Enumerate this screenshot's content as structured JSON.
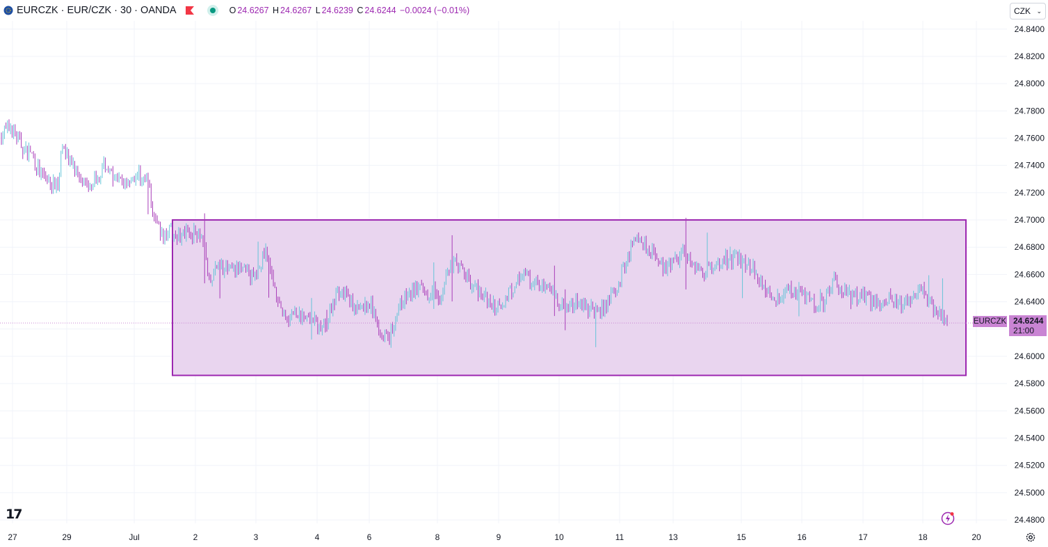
{
  "header": {
    "symbol": "EURCZK · EUR/CZK · 30 · OANDA",
    "open_label": "O",
    "open": "24.6267",
    "high_label": "H",
    "high": "24.6267",
    "low_label": "L",
    "low": "24.6239",
    "close_label": "C",
    "close": "24.6244",
    "change": "−0.0024 (−0.01%)"
  },
  "currency_selector": {
    "value": "CZK"
  },
  "price_tag": {
    "price": "24.6244",
    "countdown": "21:00",
    "symbol": "EURCZK"
  },
  "logo": {
    "text": "17"
  },
  "colors": {
    "up": "#64c4d8",
    "down": "#a83cb8",
    "box_fill": "#e9d5ef",
    "box_stroke": "#9c27b0"
  },
  "chart_data": {
    "type": "candlestick",
    "symbol": "EURCZK",
    "timeframe": "30",
    "y_ticks": [
      "24.8400",
      "24.8200",
      "24.8000",
      "24.7800",
      "24.7600",
      "24.7400",
      "24.7200",
      "24.7000",
      "24.6800",
      "24.6600",
      "24.6400",
      "24.6200",
      "24.6000",
      "24.5800",
      "24.5600",
      "24.5400",
      "24.5200",
      "24.5000",
      "24.4800"
    ],
    "ylim": [
      24.4775,
      24.846
    ],
    "x_ticks": [
      "27",
      "29",
      "Jul",
      "2",
      "3",
      "4",
      "6",
      "8",
      "9",
      "10",
      "11",
      "13",
      "15",
      "16",
      "17",
      "18",
      "20"
    ],
    "current_price": 24.6244,
    "rectangle": {
      "top_price": 24.7,
      "bottom_price": 24.586,
      "start": "Jul 1",
      "end": "Jul 19"
    },
    "price_path": [
      [
        0.0,
        24.763
      ],
      [
        0.01,
        24.768
      ],
      [
        0.02,
        24.756
      ],
      [
        0.025,
        24.75
      ],
      [
        0.03,
        24.752
      ],
      [
        0.04,
        24.735
      ],
      [
        0.05,
        24.728
      ],
      [
        0.06,
        24.725
      ],
      [
        0.065,
        24.76
      ],
      [
        0.07,
        24.745
      ],
      [
        0.08,
        24.735
      ],
      [
        0.09,
        24.726
      ],
      [
        0.1,
        24.73
      ],
      [
        0.11,
        24.74
      ],
      [
        0.12,
        24.728
      ],
      [
        0.13,
        24.728
      ],
      [
        0.14,
        24.732
      ],
      [
        0.145,
        24.733
      ],
      [
        0.15,
        24.73
      ],
      [
        0.155,
        24.728
      ],
      [
        0.16,
        24.705
      ],
      [
        0.17,
        24.688
      ],
      [
        0.175,
        24.692
      ],
      [
        0.19,
        24.688
      ],
      [
        0.2,
        24.69
      ],
      [
        0.21,
        24.692
      ],
      [
        0.215,
        24.678
      ],
      [
        0.22,
        24.65
      ],
      [
        0.23,
        24.67
      ],
      [
        0.24,
        24.662
      ],
      [
        0.25,
        24.664
      ],
      [
        0.26,
        24.66
      ],
      [
        0.27,
        24.658
      ],
      [
        0.28,
        24.68
      ],
      [
        0.285,
        24.66
      ],
      [
        0.29,
        24.648
      ],
      [
        0.3,
        24.626
      ],
      [
        0.31,
        24.63
      ],
      [
        0.32,
        24.628
      ],
      [
        0.33,
        24.626
      ],
      [
        0.34,
        24.62
      ],
      [
        0.345,
        24.625
      ],
      [
        0.35,
        24.64
      ],
      [
        0.36,
        24.65
      ],
      [
        0.37,
        24.638
      ],
      [
        0.38,
        24.635
      ],
      [
        0.39,
        24.64
      ],
      [
        0.4,
        24.62
      ],
      [
        0.41,
        24.612
      ],
      [
        0.42,
        24.636
      ],
      [
        0.43,
        24.645
      ],
      [
        0.44,
        24.65
      ],
      [
        0.45,
        24.645
      ],
      [
        0.46,
        24.65
      ],
      [
        0.465,
        24.64
      ],
      [
        0.47,
        24.66
      ],
      [
        0.48,
        24.668
      ],
      [
        0.49,
        24.66
      ],
      [
        0.5,
        24.65
      ],
      [
        0.51,
        24.645
      ],
      [
        0.52,
        24.636
      ],
      [
        0.53,
        24.64
      ],
      [
        0.54,
        24.65
      ],
      [
        0.55,
        24.66
      ],
      [
        0.56,
        24.654
      ],
      [
        0.57,
        24.652
      ],
      [
        0.58,
        24.65
      ],
      [
        0.59,
        24.638
      ],
      [
        0.6,
        24.636
      ],
      [
        0.61,
        24.64
      ],
      [
        0.62,
        24.636
      ],
      [
        0.63,
        24.632
      ],
      [
        0.64,
        24.638
      ],
      [
        0.65,
        24.65
      ],
      [
        0.66,
        24.668
      ],
      [
        0.67,
        24.69
      ],
      [
        0.68,
        24.682
      ],
      [
        0.69,
        24.675
      ],
      [
        0.7,
        24.662
      ],
      [
        0.71,
        24.668
      ],
      [
        0.72,
        24.675
      ],
      [
        0.73,
        24.67
      ],
      [
        0.74,
        24.66
      ],
      [
        0.75,
        24.665
      ],
      [
        0.76,
        24.67
      ],
      [
        0.77,
        24.672
      ],
      [
        0.78,
        24.67
      ],
      [
        0.79,
        24.668
      ],
      [
        0.8,
        24.66
      ],
      [
        0.81,
        24.646
      ],
      [
        0.82,
        24.642
      ],
      [
        0.83,
        24.65
      ],
      [
        0.84,
        24.648
      ],
      [
        0.85,
        24.644
      ],
      [
        0.86,
        24.638
      ],
      [
        0.87,
        24.64
      ],
      [
        0.88,
        24.655
      ],
      [
        0.89,
        24.648
      ],
      [
        0.9,
        24.642
      ],
      [
        0.91,
        24.645
      ],
      [
        0.92,
        24.64
      ],
      [
        0.93,
        24.64
      ],
      [
        0.94,
        24.642
      ],
      [
        0.95,
        24.638
      ],
      [
        0.96,
        24.64
      ],
      [
        0.97,
        24.652
      ],
      [
        0.98,
        24.64
      ],
      [
        0.99,
        24.632
      ],
      [
        1.0,
        24.6244
      ]
    ]
  }
}
